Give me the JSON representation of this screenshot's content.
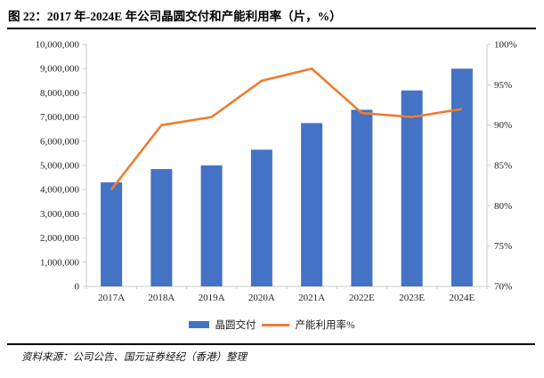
{
  "title": "图 22：2017 年-2024E 年公司晶圆交付和产能利用率（片，%）",
  "source": "资料来源：公司公告、国元证券经纪（香港）整理",
  "chart_data": {
    "type": "bar+line-combo",
    "title": "2017 年-2024E 年公司晶圆交付和产能利用率（片，%）",
    "categories": [
      "2017A",
      "2018A",
      "2019A",
      "2020A",
      "2021A",
      "2022E",
      "2023E",
      "2024E"
    ],
    "series": [
      {
        "name": "晶圆交付",
        "chart_type": "bar",
        "axis": "left",
        "color": "#4472C4",
        "values": [
          4300000,
          4850000,
          5000000,
          5650000,
          6750000,
          7300000,
          8100000,
          9000000
        ]
      },
      {
        "name": "产能利用率%",
        "chart_type": "line",
        "axis": "right",
        "color": "#ED7D31",
        "values": [
          82,
          90,
          91,
          95.5,
          97,
          91.5,
          91,
          92
        ]
      }
    ],
    "left_axis": {
      "min": 0,
      "max": 10000000,
      "step": 1000000,
      "tick_labels": [
        "0",
        "1,000,000",
        "2,000,000",
        "3,000,000",
        "4,000,000",
        "5,000,000",
        "6,000,000",
        "7,000,000",
        "8,000,000",
        "9,000,000",
        "10,000,000"
      ]
    },
    "right_axis": {
      "min": 70,
      "max": 100,
      "step": 5,
      "tick_labels": [
        "70%",
        "75%",
        "80%",
        "85%",
        "90%",
        "95%",
        "100%"
      ]
    },
    "grid": false,
    "legend_position": "bottom",
    "axis_color": "#C9C9C9",
    "label_color": "#1f1f1f"
  }
}
